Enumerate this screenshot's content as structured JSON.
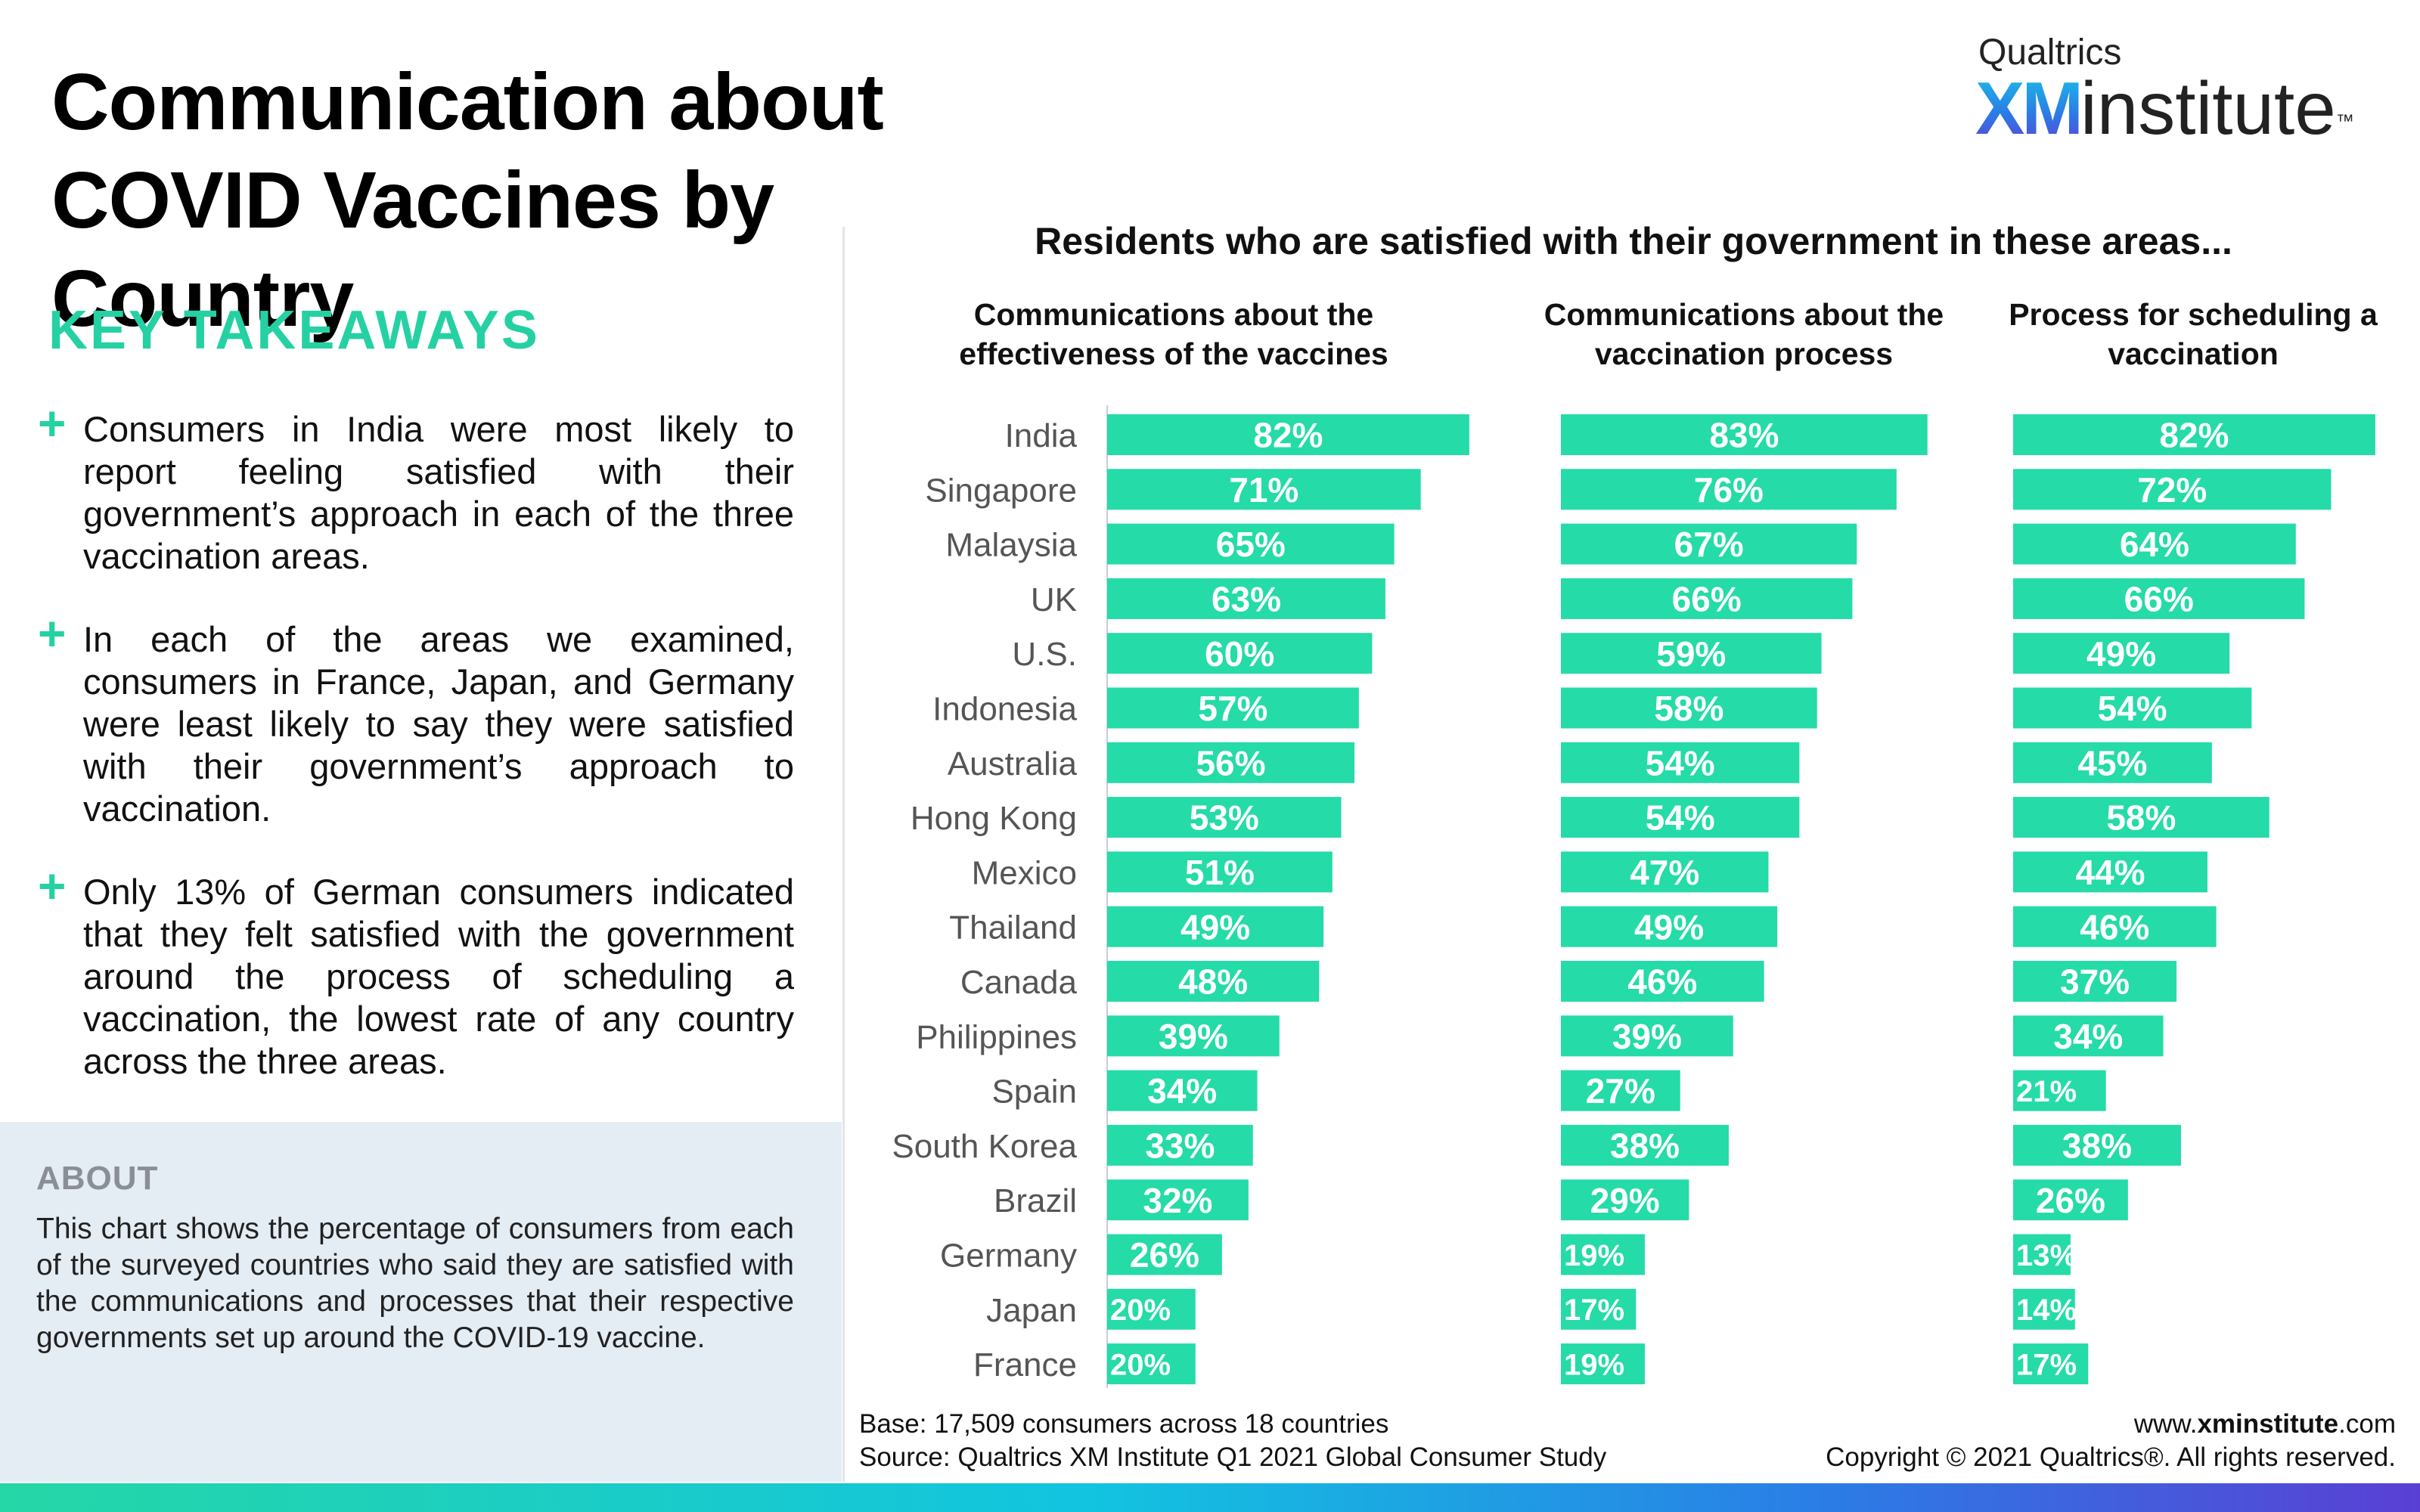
{
  "header": {
    "title": "Communication about COVID Vaccines by Country",
    "logo_top": "Qualtrics",
    "logo_xm": "XM",
    "logo_word": "institute",
    "logo_tm": "™"
  },
  "key_takeaways": {
    "heading": "KEY TAKEAWAYS",
    "items": [
      "Consumers in India were most likely to report feeling satisfied with their government’s approach in each of the three vaccination areas.",
      "In each of the areas we examined, consumers in France, Japan, and Germany were least likely to say they were satisfied with their government’s approach to vaccination.",
      "Only 13% of German consumers indicated that they felt satisfied with the government around the process of scheduling a vaccination, the lowest rate of any country across the three areas."
    ],
    "plus_icon": "+"
  },
  "about": {
    "heading": "ABOUT",
    "text": "This chart shows the percentage of consumers from each of the surveyed countries who said they are satisfied with the communications and processes that their respective governments set up around the COVID-19 vaccine."
  },
  "chart_data": {
    "type": "bar",
    "orientation": "horizontal",
    "title": "Residents who are satisfied with their government in these areas...",
    "categories": [
      "India",
      "Singapore",
      "Malaysia",
      "UK",
      "U.S.",
      "Indonesia",
      "Australia",
      "Hong Kong",
      "Mexico",
      "Thailand",
      "Canada",
      "Philippines",
      "Spain",
      "South Korea",
      "Brazil",
      "Germany",
      "Japan",
      "France"
    ],
    "series": [
      {
        "name": "Communications about the effectiveness of the vaccines",
        "values": [
          82,
          71,
          65,
          63,
          60,
          57,
          56,
          53,
          51,
          49,
          48,
          39,
          34,
          33,
          32,
          26,
          20,
          20
        ]
      },
      {
        "name": "Communications about the vaccination process",
        "values": [
          83,
          76,
          67,
          66,
          59,
          58,
          54,
          54,
          47,
          49,
          46,
          39,
          27,
          38,
          29,
          19,
          17,
          19
        ]
      },
      {
        "name": "Process for scheduling a vaccination",
        "values": [
          82,
          72,
          64,
          66,
          49,
          54,
          45,
          58,
          44,
          46,
          37,
          34,
          21,
          38,
          26,
          13,
          14,
          17
        ]
      }
    ],
    "unit": "%",
    "xlim": [
      0,
      100
    ],
    "bar_color": "#25dba8",
    "grid": false
  },
  "footer": {
    "base": "Base: 17,509 consumers across 18 countries",
    "source": "Source: Qualtrics XM Institute Q1 2021 Global Consumer Study",
    "website_prefix": "www.",
    "website_bold": "xminstitute",
    "website_suffix": ".com",
    "copyright": "Copyright © 2021 Qualtrics®. All rights reserved."
  }
}
